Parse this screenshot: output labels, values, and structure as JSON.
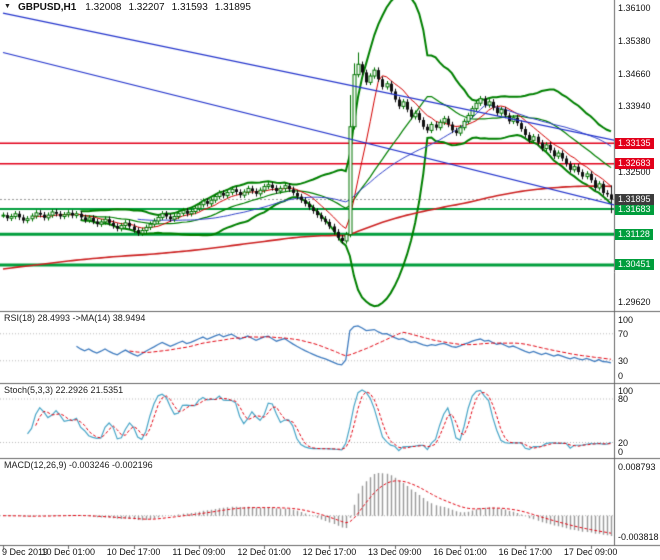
{
  "header": {
    "symbol": "GBPUSD,H1",
    "open": "1.32008",
    "high": "1.32207",
    "low": "1.31593",
    "close": "1.31895"
  },
  "panes": {
    "rsi": {
      "label": "RSI(18) 28.4993 ->MA(14) 38.9494",
      "period": 18,
      "ma_period": 14,
      "levels": [
        70,
        30
      ],
      "axis": [
        {
          "label": "100",
          "value": 100
        },
        {
          "label": "70",
          "value": 70
        },
        {
          "label": "30",
          "value": 30
        },
        {
          "label": "0",
          "value": 0
        }
      ]
    },
    "stoch": {
      "label": "Stoch(5,3,3) 22.2926 21.5351",
      "k": 5,
      "slowing": 3,
      "d": 3,
      "levels": [
        80,
        20
      ],
      "axis": [
        {
          "label": "100",
          "value": 100
        },
        {
          "label": "80",
          "value": 80
        },
        {
          "label": "20",
          "value": 20
        },
        {
          "label": "0",
          "value": 0
        }
      ]
    },
    "macd": {
      "label": "MACD(12,26,9) -0.003246 -0.002196",
      "fast": 12,
      "slow": 26,
      "signal": 9,
      "range": [
        -0.005061,
        0.010036
      ],
      "axis": [
        {
          "label": "0.008793",
          "value": 0.008793
        },
        {
          "label": "-0.003818",
          "value": -0.003818
        }
      ]
    }
  },
  "price_axis": {
    "price_min": 1.29456,
    "price_max": 1.36276,
    "gridline_labels": [
      {
        "label": "1.36100",
        "price": 1.361
      },
      {
        "label": "1.35380",
        "price": 1.3538
      },
      {
        "label": "1.34660",
        "price": 1.3466
      },
      {
        "label": "1.33940",
        "price": 1.3394
      },
      {
        "label": "1.32500",
        "price": 1.325
      },
      {
        "label": "1.29620",
        "price": 1.2962
      }
    ],
    "resistance_levels": [
      {
        "label": "1.33135",
        "price": 1.33135
      },
      {
        "label": "1.32683",
        "price": 1.32683
      }
    ],
    "support_levels": [
      {
        "label": "1.31683",
        "price": 1.31683
      },
      {
        "label": "1.31128",
        "price": 1.31128
      },
      {
        "label": "1.30451",
        "price": 1.30451
      }
    ],
    "current": {
      "label": "1.31895",
      "price": 1.31895
    }
  },
  "time_axis": {
    "labels": [
      "9 Dec 2019",
      "10 Dec 01:00",
      "10 Dec 17:00",
      "11 Dec 09:00",
      "12 Dec 01:00",
      "12 Dec 17:00",
      "13 Dec 09:00",
      "16 Dec 01:00",
      "16 Dec 17:00",
      "17 Dec 09:00"
    ],
    "indices": [
      0,
      16,
      32,
      48,
      64,
      80,
      96,
      112,
      128,
      144
    ]
  },
  "chart_data": {
    "type": "candlestick",
    "symbol": "GBPUSD",
    "timeframe": "H1",
    "wick": 0.0006,
    "closes": [
      1.3155,
      1.3148,
      1.3152,
      1.3158,
      1.315,
      1.3143,
      1.3147,
      1.3153,
      1.316,
      1.3156,
      1.3149,
      1.3155,
      1.3162,
      1.3158,
      1.3152,
      1.3156,
      1.316,
      1.3154,
      1.3158,
      1.315,
      1.3144,
      1.3149,
      1.3141,
      1.3135,
      1.314,
      1.3146,
      1.3138,
      1.3131,
      1.3125,
      1.3132,
      1.3138,
      1.313,
      1.3122,
      1.3115,
      1.3121,
      1.3128,
      1.3135,
      1.3142,
      1.315,
      1.3158,
      1.3152,
      1.3146,
      1.3152,
      1.3159,
      1.3165,
      1.3158,
      1.3163,
      1.317,
      1.3178,
      1.3186,
      1.318,
      1.3188,
      1.3196,
      1.3204,
      1.3198,
      1.3205,
      1.3212,
      1.3206,
      1.3199,
      1.3206,
      1.3214,
      1.3208,
      1.3202,
      1.321,
      1.3218,
      1.3222,
      1.3215,
      1.3208,
      1.3214,
      1.322,
      1.3212,
      1.3204,
      1.3196,
      1.3188,
      1.318,
      1.3172,
      1.3164,
      1.3155,
      1.3147,
      1.314,
      1.313,
      1.3118,
      1.3105,
      1.3098,
      1.3112,
      1.335,
      1.3465,
      1.3488,
      1.347,
      1.3448,
      1.3462,
      1.3475,
      1.3455,
      1.3438,
      1.3445,
      1.3428,
      1.341,
      1.3395,
      1.3405,
      1.3388,
      1.3372,
      1.338,
      1.3365,
      1.335,
      1.3342,
      1.3355,
      1.3348,
      1.336,
      1.3368,
      1.3355,
      1.3342,
      1.3336,
      1.3348,
      1.3362,
      1.3375,
      1.339,
      1.3402,
      1.3412,
      1.3398,
      1.3405,
      1.3392,
      1.338,
      1.3388,
      1.3375,
      1.3362,
      1.337,
      1.3358,
      1.3345,
      1.3332,
      1.332,
      1.3328,
      1.3315,
      1.3302,
      1.331,
      1.3298,
      1.3285,
      1.3292,
      1.328,
      1.3268,
      1.3255,
      1.3262,
      1.325,
      1.324,
      1.3246,
      1.3232,
      1.3215,
      1.3224,
      1.3204,
      1.32008,
      1.31895
    ],
    "overrides": {
      "85": {
        "h": 1.342
      },
      "86": {
        "h": 1.349
      },
      "87": {
        "h": 1.3514
      },
      "149": {
        "h": 1.32207,
        "l": 1.31593
      }
    },
    "bollinger": {
      "period": 20,
      "deviation": 2
    },
    "moving_averages": [
      {
        "period": 8,
        "type": "sma",
        "color": "#d40000",
        "width": 1
      },
      {
        "period": 34,
        "type": "sma",
        "color": "#3344cc",
        "width": 1
      },
      {
        "period": 200,
        "type": "ema",
        "seed": 1.3035,
        "color": "#cc2020",
        "width": 1.6
      }
    ],
    "trendlines": [
      {
        "from_index": 0,
        "from_price": 1.3601,
        "to_index": 150,
        "to_price": 1.332
      },
      {
        "from_index": 0,
        "from_price": 1.3514,
        "to_index": 150,
        "to_price": 1.3177
      }
    ]
  },
  "colors": {
    "bull": "#007400",
    "bear": "#101010",
    "bands": "#008000",
    "trendline": "#2233cc",
    "resistance": "#e2001a",
    "support": "#009e3c",
    "current_label": "#3c3c3c",
    "rsi": "#3e7bbf",
    "stoch": "#49a6c8",
    "signal": "#e30613",
    "hist": "#9a9a9a",
    "grid_dotted": "#bbbbbb"
  }
}
